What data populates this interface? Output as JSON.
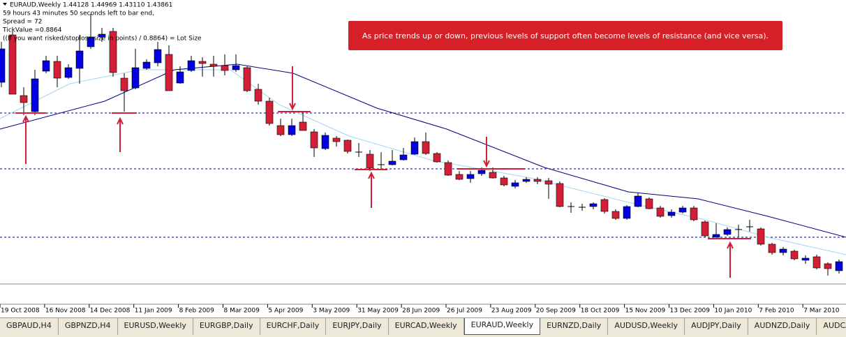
{
  "header": {
    "symbol_line": "EURAUD,Weekly  1.44128 1.44969 1.43110 1.43861",
    "info_lines": [
      "59 hours 43 minutes 50 seconds left to bar end,",
      "Spread = 72",
      "TickValue =0.8864",
      "((If you want risked/stoploss size in points) / 0.8864) = Lot Size"
    ]
  },
  "annotation": "As price trends up or down, previous levels of support often become levels of resistance (and vice versa).",
  "date_axis": [
    "19 Oct 2008",
    "16 Nov 2008",
    "14 Dec 2008",
    "11 Jan 2009",
    "8 Feb 2009",
    "8 Mar 2009",
    "5 Apr 2009",
    "3 May 2009",
    "31 May 2009",
    "28 Jun 2009",
    "26 Jul 2009",
    "23 Aug 2009",
    "20 Sep 2009",
    "18 Oct 2009",
    "15 Nov 2009",
    "13 Dec 2009",
    "10 Jan 2010",
    "7 Feb 2010",
    "7 Mar 2010"
  ],
  "tabs": [
    "GBPAUD,H4",
    "GBPNZD,H4",
    "EURUSD,Weekly",
    "EURGBP,Daily",
    "EURCHF,Daily",
    "EURJPY,Daily",
    "EURCAD,Weekly",
    "EURAUD,Weekly",
    "EURNZD,Daily",
    "AUDUSD,Weekly",
    "AUDJPY,Daily",
    "AUDNZD,Daily",
    "AUDCAD,Daily"
  ],
  "active_tab": 7
}
